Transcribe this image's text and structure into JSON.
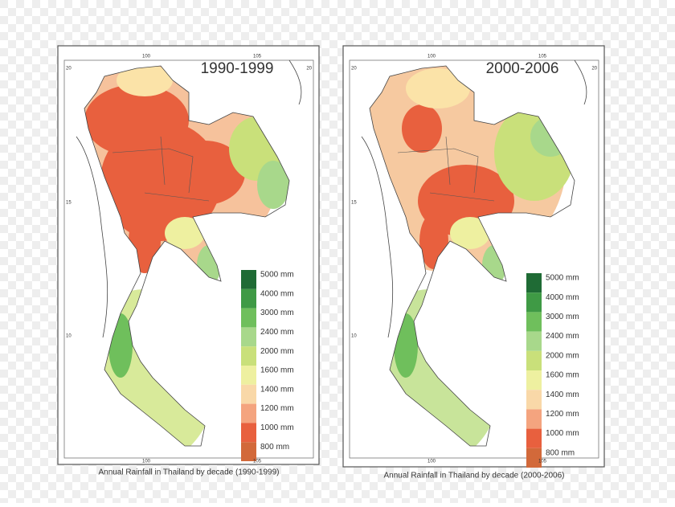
{
  "panels": [
    {
      "title": "1990-1999",
      "caption": "Annual Rainfall in Thailand by decade (1990-1999)",
      "legend": [
        "5000 mm",
        "4000 mm",
        "3000 mm",
        "2400 mm",
        "2000 mm",
        "1600 mm",
        "1400 mm",
        "1200 mm",
        "1000 mm",
        "800 mm"
      ]
    },
    {
      "title": "2000-2006",
      "caption": "Annual Rainfall in Thailand by decade (2000-2006)",
      "legend": [
        "5000 mm",
        "4000 mm",
        "3000 mm",
        "2400 mm",
        "2000 mm",
        "1600 mm",
        "1400 mm",
        "1200 mm",
        "1000 mm",
        "800 mm"
      ]
    }
  ],
  "longitude_labels": [
    "100",
    "105"
  ],
  "latitude_labels": [
    "20",
    "15",
    "10"
  ]
}
